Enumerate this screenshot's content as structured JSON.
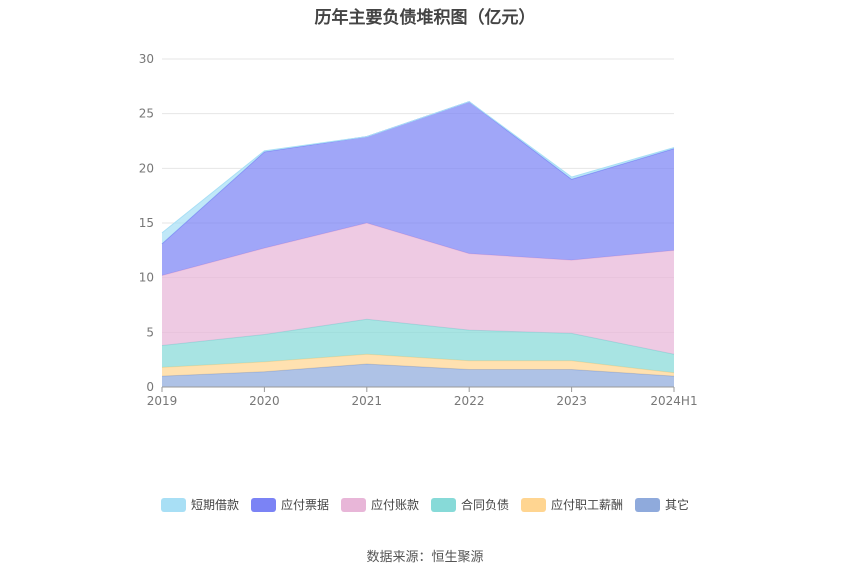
{
  "title": "历年主要负债堆积图（亿元）",
  "source": "数据来源：恒生聚源",
  "chart_data": {
    "type": "area",
    "stacked": true,
    "categories": [
      "2019",
      "2020",
      "2021",
      "2022",
      "2023",
      "2024H1"
    ],
    "ylim": [
      0,
      30
    ],
    "yticks": [
      0,
      5,
      10,
      15,
      20,
      25,
      30
    ],
    "grid": true,
    "legend_position": "bottom",
    "series": [
      {
        "name": "其它",
        "color": "#8faadc",
        "values": [
          1.0,
          1.4,
          2.1,
          1.6,
          1.6,
          1.0
        ]
      },
      {
        "name": "应付职工薪酬",
        "color": "#ffd591",
        "values": [
          0.8,
          0.9,
          0.9,
          0.8,
          0.8,
          0.3
        ]
      },
      {
        "name": "合同负债",
        "color": "#87dad8",
        "values": [
          2.0,
          2.5,
          3.2,
          2.8,
          2.5,
          1.7
        ]
      },
      {
        "name": "应付账款",
        "color": "#e8b6d8",
        "values": [
          6.4,
          7.9,
          8.8,
          7.0,
          6.7,
          9.5
        ]
      },
      {
        "name": "应付票据",
        "color": "#7b83f5",
        "values": [
          2.9,
          8.8,
          7.9,
          13.9,
          7.4,
          9.3
        ]
      },
      {
        "name": "短期借款",
        "color": "#a8dff5",
        "values": [
          1.0,
          0.1,
          0.0,
          0.0,
          0.2,
          0.1
        ]
      }
    ]
  }
}
